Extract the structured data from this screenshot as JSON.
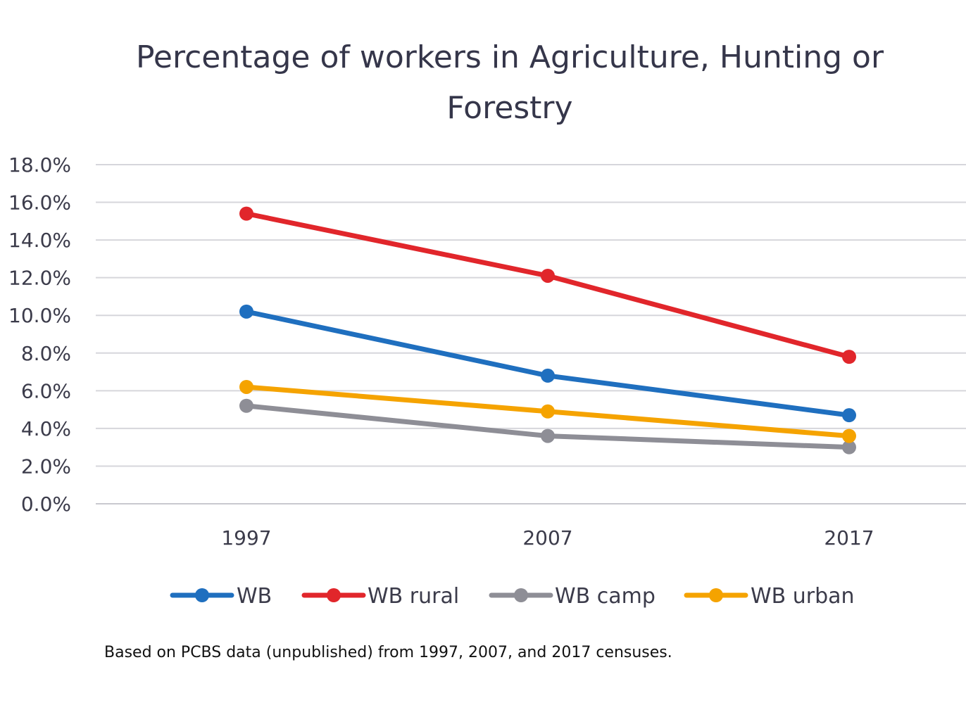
{
  "chart_data": {
    "type": "line",
    "title_lines": [
      "Percentage of workers in Agriculture, Hunting or",
      "Forestry"
    ],
    "categories": [
      "1997",
      "2007",
      "2017"
    ],
    "series": [
      {
        "name": "WB",
        "values": [
          10.2,
          6.8,
          4.7
        ],
        "color": "#1f6fbf"
      },
      {
        "name": "WB rural",
        "values": [
          15.4,
          12.1,
          7.8
        ],
        "color": "#e1262b"
      },
      {
        "name": "WB camp",
        "values": [
          5.2,
          3.6,
          3.0
        ],
        "color": "#8e8e96"
      },
      {
        "name": "WB urban",
        "values": [
          6.2,
          4.9,
          3.6
        ],
        "color": "#f5a300"
      }
    ],
    "y_ticks": [
      "0.0%",
      "2.0%",
      "4.0%",
      "6.0%",
      "8.0%",
      "10.0%",
      "12.0%",
      "14.0%",
      "16.0%",
      "18.0%"
    ],
    "ylim": [
      0,
      18
    ],
    "grid": true,
    "legend_position": "bottom",
    "xlabel": "",
    "ylabel": ""
  },
  "source_note": "Based on PCBS data (unpublished) from 1997, 2007, and 2017 censuses."
}
